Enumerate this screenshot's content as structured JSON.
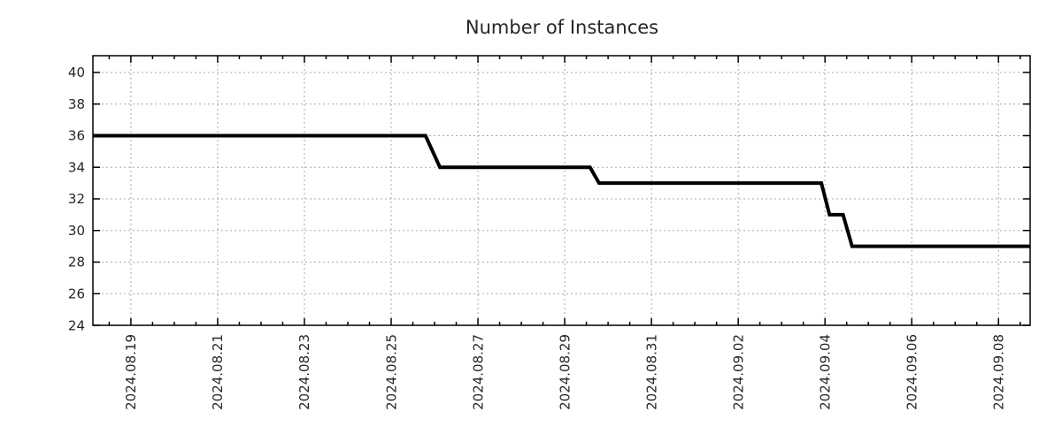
{
  "chart_data": {
    "type": "line",
    "title": "Number of Instances",
    "xlabel": "",
    "ylabel": "",
    "legend": null,
    "grid": true,
    "grid_style": "dotted",
    "colors": {
      "line": "#000000",
      "grid": "#a8a8a8",
      "axis_border": "#000000",
      "text": "#262626",
      "background": "#ffffff"
    },
    "xlim": [
      "2024-08-18 03:00",
      "2024-09-08 17:30"
    ],
    "ylim": [
      24,
      41.06
    ],
    "y_ticks": [
      24,
      26,
      28,
      30,
      32,
      34,
      36,
      38,
      40
    ],
    "x_ticks": [
      "2024.08.19",
      "2024.08.21",
      "2024.08.23",
      "2024.08.25",
      "2024.08.27",
      "2024.08.29",
      "2024.08.31",
      "2024.09.02",
      "2024.09.04",
      "2024.09.06",
      "2024.09.08"
    ],
    "x_minor_tick_interval_hours": 12,
    "points": [
      [
        "2024-08-18 03:00",
        36
      ],
      [
        "2024-08-25 19:00",
        36
      ],
      [
        "2024-08-26 03:00",
        34
      ],
      [
        "2024-08-29 14:00",
        34
      ],
      [
        "2024-08-29 19:00",
        33
      ],
      [
        "2024-09-03 22:00",
        33
      ],
      [
        "2024-09-04 02:30",
        31
      ],
      [
        "2024-09-04 10:00",
        31
      ],
      [
        "2024-09-04 15:00",
        29
      ],
      [
        "2024-09-08 17:30",
        29
      ]
    ]
  }
}
